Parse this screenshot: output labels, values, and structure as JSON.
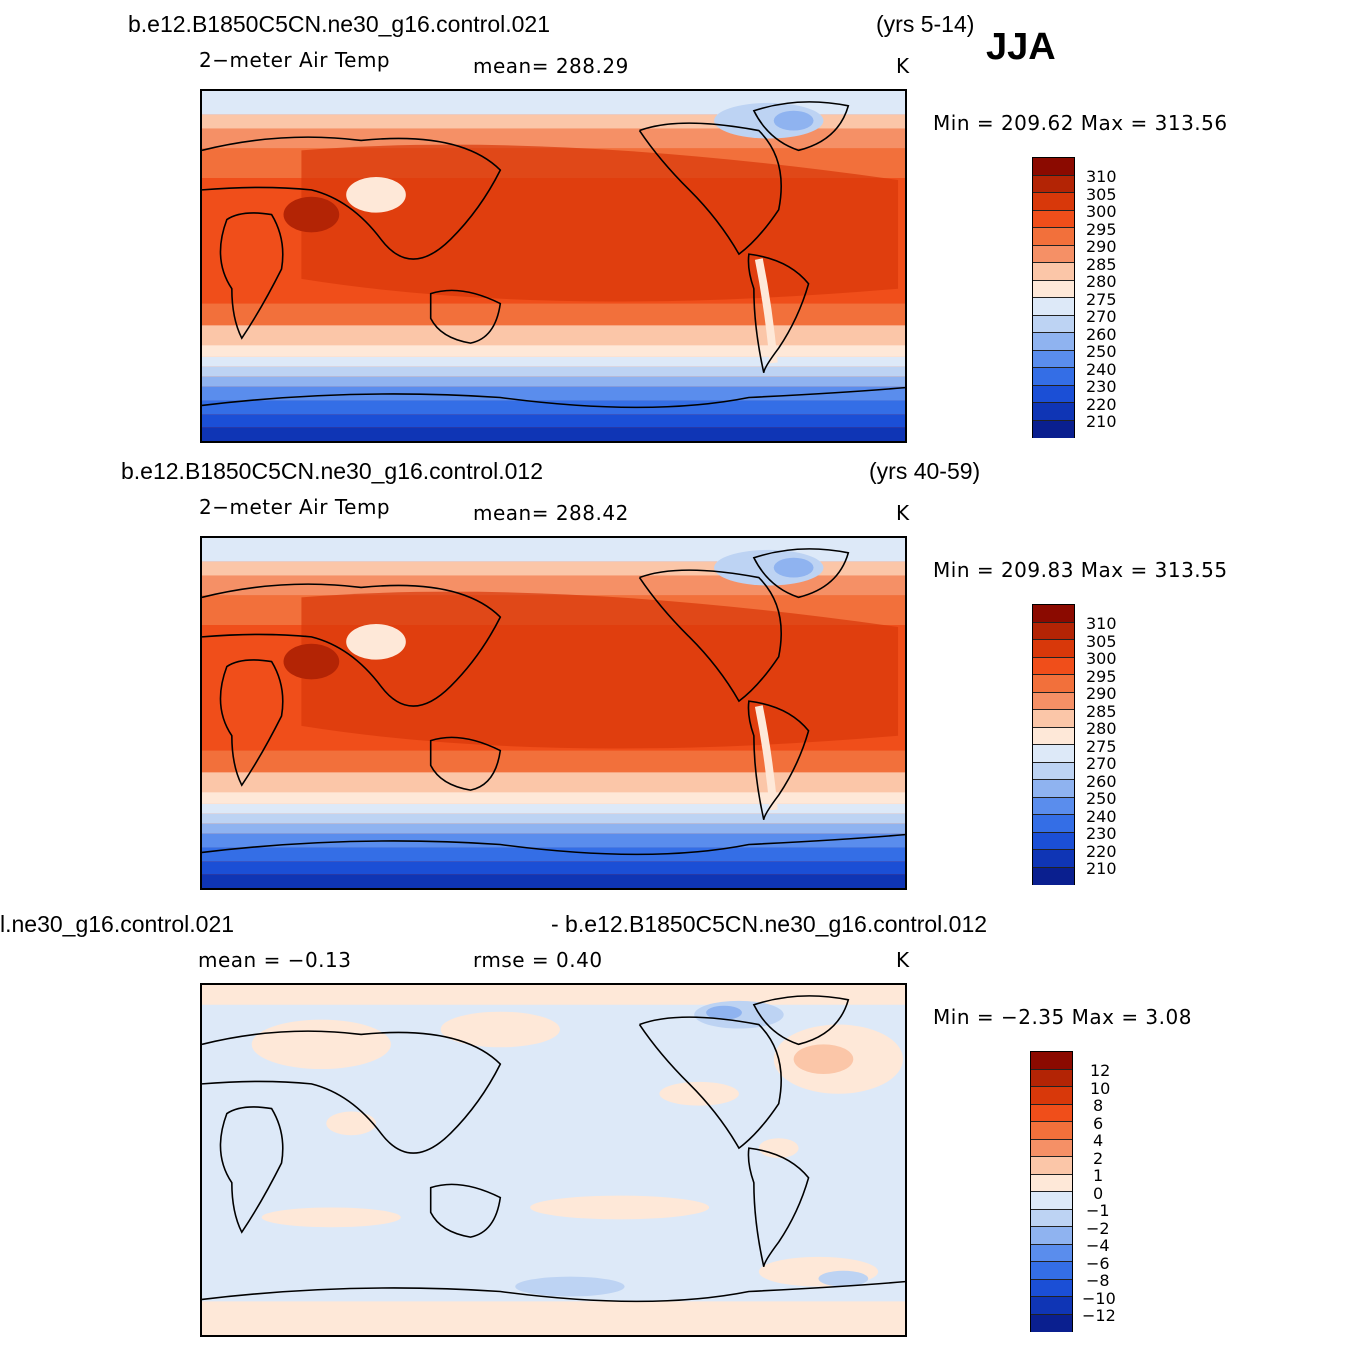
{
  "season": "JJA",
  "panels": [
    {
      "case_name": "b.e12.B1850C5CN.ne30_g16.control.021",
      "years": "(yrs 5-14)",
      "variable": "2−meter Air Temp",
      "stat": "mean=  288.29",
      "units": "K",
      "minmax": "Min  =  209.62  Max  =  313.56",
      "colorbar": {
        "labels": [
          "310",
          "305",
          "300",
          "295",
          "290",
          "285",
          "280",
          "275",
          "270",
          "260",
          "250",
          "240",
          "230",
          "220",
          "210"
        ],
        "colors": [
          "#8b0a00",
          "#b32405",
          "#d8380a",
          "#f04e1a",
          "#f2703b",
          "#f59066",
          "#fbc6a8",
          "#fee8d8",
          "#dde9f8",
          "#bdd3f3",
          "#8fb3f0",
          "#5a8ded",
          "#346ee6",
          "#1b4fd6",
          "#0f35b5",
          "#0a1f8f"
        ]
      }
    },
    {
      "case_name": "b.e12.B1850C5CN.ne30_g16.control.012",
      "years": "(yrs 40-59)",
      "variable": "2−meter Air Temp",
      "stat": "mean=  288.42",
      "units": "K",
      "minmax": "Min  =  209.83  Max  =  313.55",
      "colorbar": {
        "labels": [
          "310",
          "305",
          "300",
          "295",
          "290",
          "285",
          "280",
          "275",
          "270",
          "260",
          "250",
          "240",
          "230",
          "220",
          "210"
        ],
        "colors": [
          "#8b0a00",
          "#b32405",
          "#d8380a",
          "#f04e1a",
          "#f2703b",
          "#f59066",
          "#fbc6a8",
          "#fee8d8",
          "#dde9f8",
          "#bdd3f3",
          "#8fb3f0",
          "#5a8ded",
          "#346ee6",
          "#1b4fd6",
          "#0f35b5",
          "#0a1f8f"
        ]
      }
    },
    {
      "case_name_left": "l.ne30_g16.control.021",
      "case_name_right": "- b.e12.B1850C5CN.ne30_g16.control.012",
      "stat_left": "mean  =   −0.13",
      "stat_right": "rmse  =     0.40",
      "units": "K",
      "minmax": "Min  =    −2.35  Max  =      3.08",
      "colorbar": {
        "labels": [
          "12",
          "10",
          "8",
          "6",
          "4",
          "2",
          "1",
          "0",
          "−1",
          "−2",
          "−4",
          "−6",
          "−8",
          "−10",
          "−12"
        ],
        "colors": [
          "#8b0a00",
          "#b32405",
          "#d8380a",
          "#f04e1a",
          "#f2703b",
          "#f59066",
          "#fbc6a8",
          "#fee8d8",
          "#dde9f8",
          "#bdd3f3",
          "#8fb3f0",
          "#5a8ded",
          "#346ee6",
          "#1b4fd6",
          "#0f35b5",
          "#0a1f8f"
        ]
      }
    }
  ]
}
